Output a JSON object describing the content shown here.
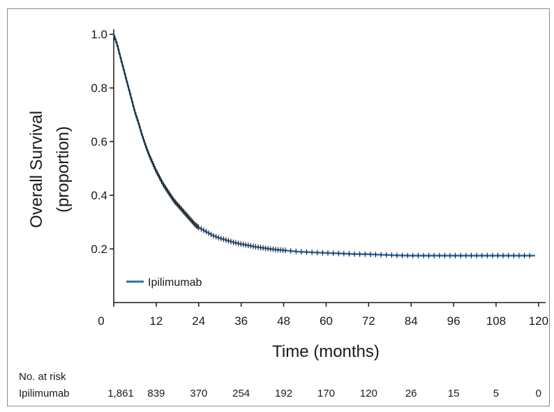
{
  "chart_data": {
    "type": "line",
    "title": "",
    "xlabel": "Time (months)",
    "ylabel_lines": [
      "Overall Survival",
      "(proportion)"
    ],
    "xlim": [
      0,
      122
    ],
    "ylim": [
      0.0,
      1.05
    ],
    "x_ticks": [
      0,
      12,
      24,
      36,
      48,
      60,
      72,
      84,
      96,
      108,
      120
    ],
    "y_ticks": [
      0.2,
      0.4,
      0.6,
      0.8,
      1.0
    ],
    "y_tick_labels": [
      "0.2",
      "0.4",
      "0.6",
      "0.8",
      "1.0"
    ],
    "grid": false,
    "legend": {
      "position": "bottom-left",
      "entries": [
        {
          "label": "Ipilimumab",
          "color": "#2b6cb0"
        }
      ]
    },
    "series": [
      {
        "name": "Ipilimumab",
        "color": "#2b6cb0",
        "censor_color": "#1a1a1a",
        "x": [
          0,
          1,
          2,
          3,
          4,
          5,
          6,
          7,
          8,
          9,
          10,
          11,
          12,
          13,
          14,
          15,
          16,
          17,
          18,
          19,
          20,
          21,
          22,
          23,
          24,
          26,
          28,
          30,
          32,
          34,
          36,
          38,
          40,
          42,
          44,
          46,
          48,
          52,
          56,
          60,
          64,
          68,
          72,
          76,
          80,
          84,
          88,
          92,
          96,
          100,
          104,
          108,
          112,
          116,
          119
        ],
        "y": [
          1.0,
          0.96,
          0.91,
          0.86,
          0.81,
          0.76,
          0.71,
          0.67,
          0.625,
          0.585,
          0.55,
          0.52,
          0.49,
          0.465,
          0.44,
          0.42,
          0.4,
          0.38,
          0.365,
          0.35,
          0.335,
          0.32,
          0.305,
          0.29,
          0.28,
          0.265,
          0.25,
          0.24,
          0.232,
          0.224,
          0.218,
          0.213,
          0.208,
          0.204,
          0.2,
          0.197,
          0.195,
          0.19,
          0.187,
          0.185,
          0.183,
          0.181,
          0.18,
          0.178,
          0.176,
          0.175,
          0.175,
          0.175,
          0.175,
          0.175,
          0.175,
          0.175,
          0.175,
          0.175,
          0.175
        ]
      }
    ]
  },
  "risk_table": {
    "header": "No. at risk",
    "row_label": "Ipilimumab",
    "times": [
      0,
      12,
      24,
      36,
      48,
      60,
      72,
      84,
      96,
      108,
      120
    ],
    "counts": [
      "1,861",
      "839",
      "370",
      "254",
      "192",
      "170",
      "120",
      "26",
      "15",
      "5",
      "0"
    ]
  }
}
